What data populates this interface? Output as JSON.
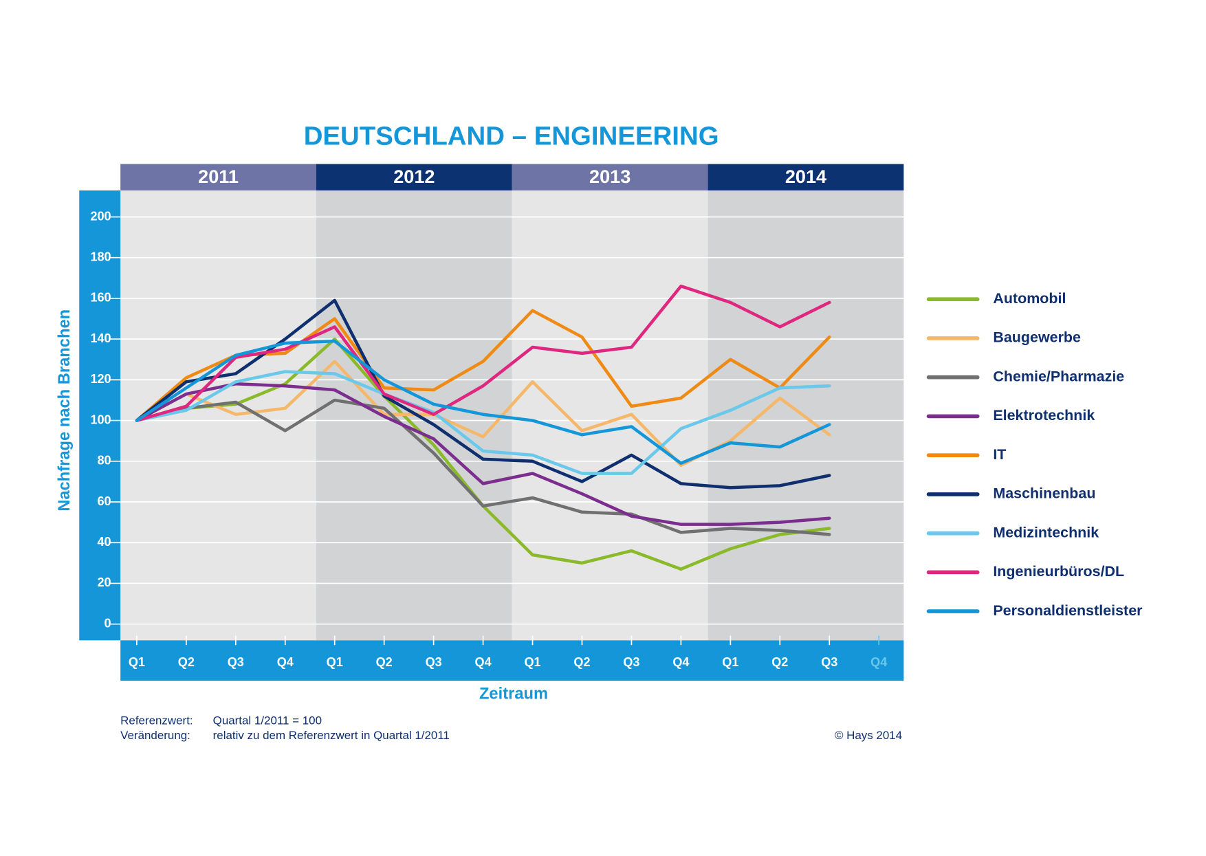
{
  "chart_data": {
    "type": "line",
    "title": "DEUTSCHLAND – ENGINEERING",
    "years": [
      "2011",
      "2012",
      "2013",
      "2014"
    ],
    "categories": [
      "Q1",
      "Q2",
      "Q3",
      "Q4",
      "Q1",
      "Q2",
      "Q3",
      "Q4",
      "Q1",
      "Q2",
      "Q3",
      "Q4",
      "Q1",
      "Q2",
      "Q3",
      "Q4"
    ],
    "y_label": "Nachfrage nach Branchen",
    "x_label": "Zeitraum",
    "ylim": [
      -8,
      213
    ],
    "yticks": [
      0,
      20,
      40,
      60,
      80,
      100,
      120,
      140,
      160,
      180,
      200
    ],
    "grid": true,
    "legend": "right",
    "series": [
      {
        "name": "Automobil",
        "color": "#8aba2a",
        "values": [
          100,
          106,
          108,
          118,
          140,
          112,
          88,
          58,
          34,
          30,
          36,
          27,
          37,
          44,
          47,
          null
        ]
      },
      {
        "name": "Baugewerbe",
        "color": "#f5b86a",
        "values": [
          100,
          113,
          103,
          106,
          129,
          103,
          103,
          92,
          119,
          95,
          103,
          78,
          90,
          111,
          93,
          null
        ]
      },
      {
        "name": "Chemie/Pharmazie",
        "color": "#707070",
        "values": [
          100,
          106,
          109,
          95,
          110,
          106,
          84,
          58,
          62,
          55,
          54,
          45,
          47,
          46,
          44,
          null
        ]
      },
      {
        "name": "Elektrotechnik",
        "color": "#7b2e8e",
        "values": [
          100,
          113,
          118,
          117,
          115,
          102,
          91,
          69,
          74,
          64,
          53,
          49,
          49,
          50,
          52,
          null
        ]
      },
      {
        "name": "IT",
        "color": "#ef8a15",
        "values": [
          100,
          121,
          132,
          133,
          150,
          116,
          115,
          129,
          154,
          141,
          107,
          111,
          130,
          116,
          141,
          null
        ]
      },
      {
        "name": "Maschinenbau",
        "color": "#0f2f6e",
        "values": [
          100,
          119,
          123,
          140,
          159,
          112,
          98,
          81,
          80,
          70,
          83,
          69,
          67,
          68,
          73,
          null
        ]
      },
      {
        "name": "Medizintechnik",
        "color": "#6ac8ea",
        "values": [
          100,
          105,
          119,
          124,
          123,
          113,
          104,
          85,
          83,
          74,
          74,
          96,
          105,
          116,
          117,
          null
        ]
      },
      {
        "name": "Ingenieurbüros/DL",
        "color": "#e0277f",
        "values": [
          100,
          107,
          131,
          135,
          146,
          113,
          103,
          117,
          136,
          133,
          136,
          166,
          158,
          146,
          158,
          null
        ]
      },
      {
        "name": "Personaldienstleister",
        "color": "#1496d8",
        "values": [
          100,
          116,
          132,
          138,
          139,
          120,
          108,
          103,
          100,
          93,
          97,
          79,
          89,
          87,
          98,
          null
        ]
      }
    ],
    "notes": [
      [
        "Referenzwert:",
        "Quartal 1/2011 = 100"
      ],
      [
        "Veränderung:",
        "relativ zu dem Referenzwert in Quartal 1/2011"
      ]
    ],
    "copyright": "© Hays 2014"
  }
}
